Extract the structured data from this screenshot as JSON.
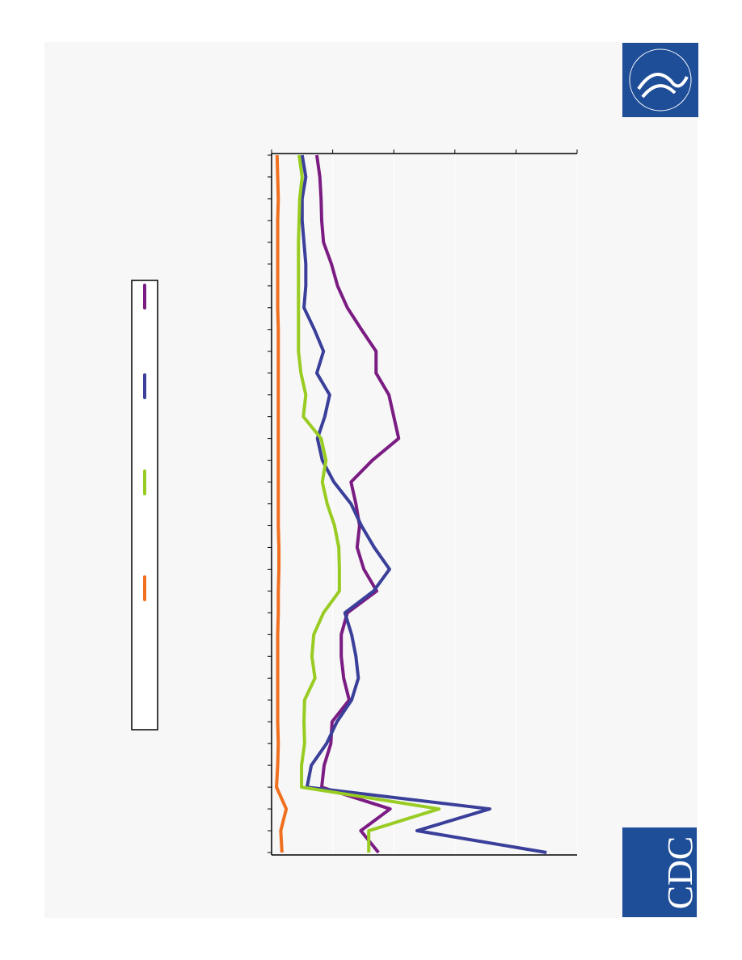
{
  "chart_data": {
    "type": "line",
    "categories": [
      null,
      null,
      null,
      null,
      null,
      null,
      null,
      null,
      null,
      null,
      null,
      null,
      null,
      null,
      null,
      null,
      null,
      null,
      null,
      null,
      null,
      null,
      null,
      null,
      null,
      null,
      null,
      null,
      null,
      null,
      null,
      null,
      null
    ],
    "series": [
      {
        "color": "#7b1c83",
        "values": [
          0.74,
          0.79,
          0.81,
          0.82,
          0.85,
          0.98,
          1.08,
          1.24,
          1.47,
          1.71,
          1.71,
          1.92,
          2.0,
          2.08,
          1.65,
          1.3,
          1.38,
          1.44,
          1.4,
          1.51,
          1.72,
          1.24,
          1.14,
          1.14,
          1.18,
          1.27,
          0.99,
          0.97,
          0.86,
          0.82,
          1.94,
          1.46,
          1.75
        ]
      },
      {
        "color": "#3a3f9a",
        "values": [
          0.5,
          0.56,
          0.5,
          0.5,
          0.53,
          0.56,
          0.56,
          0.53,
          0.7,
          0.85,
          0.74,
          0.95,
          0.87,
          0.75,
          0.83,
          1.02,
          1.3,
          1.47,
          1.68,
          1.93,
          1.67,
          1.2,
          1.31,
          1.38,
          1.42,
          1.31,
          1.07,
          0.9,
          0.65,
          0.58,
          3.57,
          2.38,
          4.5
        ]
      },
      {
        "color": "#99cc22",
        "values": [
          0.45,
          0.5,
          0.46,
          0.45,
          0.44,
          0.44,
          0.44,
          0.44,
          0.44,
          0.44,
          0.48,
          0.56,
          0.52,
          0.81,
          0.89,
          0.83,
          0.91,
          1.03,
          1.1,
          1.11,
          1.11,
          0.85,
          0.69,
          0.66,
          0.71,
          0.54,
          0.53,
          0.54,
          0.49,
          0.49,
          2.74,
          1.59,
          1.59
        ]
      },
      {
        "color": "#f07020",
        "values": [
          0.09,
          0.1,
          0.11,
          0.1,
          0.1,
          0.1,
          0.1,
          0.1,
          0.11,
          0.11,
          0.11,
          0.11,
          0.11,
          0.11,
          0.11,
          0.11,
          0.11,
          0.11,
          0.12,
          0.12,
          0.11,
          0.11,
          0.1,
          0.1,
          0.1,
          0.1,
          0.1,
          0.11,
          0.1,
          0.08,
          0.24,
          0.15,
          0.17
        ]
      }
    ],
    "ylim": [
      0,
      5
    ],
    "yticks": [
      0,
      1,
      2,
      3,
      4,
      5
    ],
    "grid": true
  },
  "logo": {
    "cdc": "CDC"
  }
}
